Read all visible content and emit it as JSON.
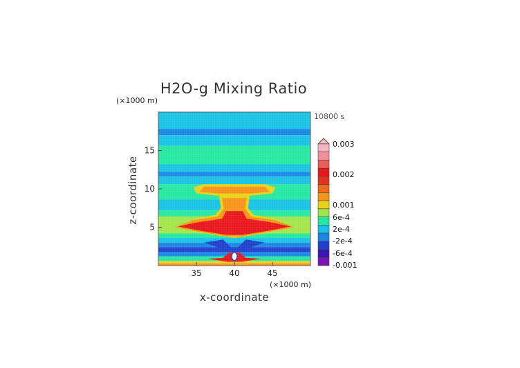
{
  "chart_data": {
    "type": "heatmap",
    "title": "H2O-g Mixing Ratio",
    "xlabel": "x-coordinate",
    "ylabel": "z-coordinate",
    "x_unit": "(×1000 m)",
    "y_unit": "(×1000 m)",
    "time": "10800 s",
    "xlim": [
      30,
      50
    ],
    "ylim": [
      0,
      20
    ],
    "x_ticks": [
      {
        "value": 35,
        "label": "35"
      },
      {
        "value": 40,
        "label": "40"
      },
      {
        "value": 45,
        "label": "45"
      }
    ],
    "y_ticks": [
      {
        "value": 5,
        "label": "5"
      },
      {
        "value": 10,
        "label": "10"
      },
      {
        "value": 15,
        "label": "15"
      }
    ],
    "colorbar": {
      "labels": [
        "0.003",
        "0.002",
        "0.001",
        "6e-4",
        "2e-4",
        "-2e-4",
        "-6e-4",
        "-0.001"
      ],
      "colors": [
        "#f4b6c2",
        "#f28f98",
        "#ec5d5d",
        "#e8171b",
        "#e3331f",
        "#f06a1d",
        "#f79418",
        "#e9d21b",
        "#a3e64a",
        "#25e8a1",
        "#19c2e4",
        "#1a86e4",
        "#1f40ce",
        "#3a18b4",
        "#7a16b0"
      ]
    },
    "bands": [
      {
        "z0": 17.8,
        "z1": 20.0,
        "color": "#19c2e4"
      },
      {
        "z0": 17.0,
        "z1": 17.8,
        "color": "#1a86e4"
      },
      {
        "z0": 15.6,
        "z1": 17.0,
        "color": "#19c2e4"
      },
      {
        "z0": 13.2,
        "z1": 15.6,
        "color": "#25e8a1"
      },
      {
        "z0": 12.2,
        "z1": 13.2,
        "color": "#19c2e4"
      },
      {
        "z0": 11.6,
        "z1": 12.2,
        "color": "#1a86e4"
      },
      {
        "z0": 10.6,
        "z1": 11.6,
        "color": "#19c2e4"
      },
      {
        "z0": 9.6,
        "z1": 10.6,
        "color": "#25e8a1"
      },
      {
        "z0": 8.6,
        "z1": 9.6,
        "color": "#25e8a1"
      },
      {
        "z0": 7.2,
        "z1": 8.6,
        "color": "#19c2e4"
      },
      {
        "z0": 6.4,
        "z1": 7.2,
        "color": "#25e8a1"
      },
      {
        "z0": 5.8,
        "z1": 6.4,
        "color": "#a3e64a"
      },
      {
        "z0": 4.2,
        "z1": 5.8,
        "color": "#a3e64a"
      },
      {
        "z0": 3.6,
        "z1": 4.2,
        "color": "#25e8a1"
      },
      {
        "z0": 3.0,
        "z1": 3.6,
        "color": "#19c2e4"
      },
      {
        "z0": 2.4,
        "z1": 3.0,
        "color": "#1a86e4"
      },
      {
        "z0": 1.8,
        "z1": 2.4,
        "color": "#1f40ce"
      },
      {
        "z0": 1.2,
        "z1": 1.8,
        "color": "#1a86e4"
      },
      {
        "z0": 0.6,
        "z1": 1.2,
        "color": "#25e8a1"
      },
      {
        "z0": 0.3,
        "z1": 0.6,
        "color": "#e9d21b"
      },
      {
        "z0": 0.0,
        "z1": 0.3,
        "color": "#f79418"
      }
    ],
    "plume_regions": [
      {
        "name": "anvil-yellow",
        "color": "#e9d21b",
        "points": [
          [
            33.4,
            5.0
          ],
          [
            35.0,
            6.2
          ],
          [
            37.5,
            6.6
          ],
          [
            38.2,
            7.5
          ],
          [
            38.0,
            9.1
          ],
          [
            35.0,
            9.4
          ],
          [
            34.6,
            10.2
          ],
          [
            36.0,
            10.6
          ],
          [
            44.0,
            10.6
          ],
          [
            45.4,
            10.2
          ],
          [
            45.0,
            9.4
          ],
          [
            42.0,
            9.1
          ],
          [
            41.8,
            7.5
          ],
          [
            42.5,
            6.6
          ],
          [
            45.0,
            6.2
          ],
          [
            46.6,
            5.0
          ],
          [
            44.0,
            4.2
          ],
          [
            40.0,
            3.6
          ],
          [
            36.0,
            4.2
          ]
        ]
      },
      {
        "name": "anvil-orange",
        "color": "#f79418",
        "points": [
          [
            32.2,
            5.0
          ],
          [
            34.5,
            5.9
          ],
          [
            37.8,
            6.4
          ],
          [
            38.6,
            7.4
          ],
          [
            38.4,
            8.8
          ],
          [
            41.6,
            8.8
          ],
          [
            41.4,
            7.4
          ],
          [
            42.2,
            6.4
          ],
          [
            45.5,
            5.9
          ],
          [
            47.8,
            5.0
          ],
          [
            45.0,
            4.5
          ],
          [
            41.0,
            3.8
          ],
          [
            39.0,
            3.8
          ],
          [
            35.0,
            4.5
          ]
        ]
      },
      {
        "name": "core-red",
        "color": "#e8171b",
        "points": [
          [
            32.6,
            5.1
          ],
          [
            35.5,
            5.7
          ],
          [
            38.4,
            6.1
          ],
          [
            38.9,
            7.1
          ],
          [
            41.1,
            7.1
          ],
          [
            41.6,
            6.1
          ],
          [
            44.5,
            5.7
          ],
          [
            47.4,
            5.1
          ],
          [
            44.8,
            4.6
          ],
          [
            41.0,
            4.0
          ],
          [
            39.0,
            4.0
          ],
          [
            35.2,
            4.6
          ]
        ]
      },
      {
        "name": "top-orange",
        "color": "#f79418",
        "points": [
          [
            35.4,
            9.6
          ],
          [
            36.0,
            10.3
          ],
          [
            44.0,
            10.3
          ],
          [
            44.6,
            9.6
          ],
          [
            42.0,
            9.4
          ],
          [
            38.0,
            9.4
          ]
        ]
      },
      {
        "name": "lower-blue",
        "color": "#1f40ce",
        "points": [
          [
            36.0,
            3.0
          ],
          [
            38.5,
            3.4
          ],
          [
            39.5,
            2.4
          ],
          [
            40.5,
            2.4
          ],
          [
            41.5,
            3.4
          ],
          [
            44.0,
            3.0
          ],
          [
            41.0,
            2.0
          ],
          [
            39.0,
            2.0
          ]
        ]
      },
      {
        "name": "base-red",
        "color": "#e8171b",
        "points": [
          [
            36.5,
            0.9
          ],
          [
            38.5,
            1.0
          ],
          [
            39.3,
            1.7
          ],
          [
            40.7,
            1.7
          ],
          [
            41.5,
            1.0
          ],
          [
            43.5,
            0.9
          ],
          [
            41.0,
            0.5
          ],
          [
            39.0,
            0.5
          ]
        ]
      }
    ]
  }
}
